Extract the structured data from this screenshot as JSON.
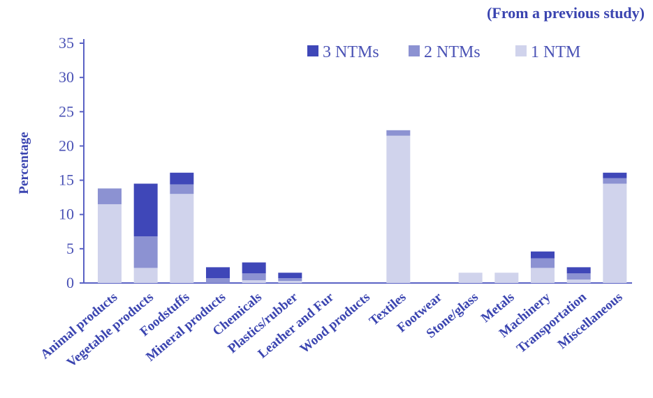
{
  "note": "(From a previous study)",
  "colors": {
    "axis": "#5a62c4",
    "text": "#3a44b0",
    "s3": "#3f47b8",
    "s2": "#8c92d2",
    "s1": "#d0d3ec"
  },
  "chart_data": {
    "type": "bar",
    "stacked": true,
    "title": "",
    "xlabel": "",
    "ylabel": "Percentage",
    "ylim": [
      0,
      35
    ],
    "yticks": [
      "0",
      "5",
      "10",
      "15",
      "20",
      "25",
      "30",
      "35"
    ],
    "legend_position": "top-right",
    "grid": false,
    "categories": [
      "Animal products",
      "Vegetable products",
      "Foodstuffs",
      "Mineral products",
      "Chemicals",
      "Plastics/rubber",
      "Leather and Fur",
      "Wood products",
      "Textiles",
      "Footwear",
      "Stone/glass",
      "Metals",
      "Machinery",
      "Transportation",
      "Miscellaneous"
    ],
    "series": [
      {
        "name": "1 NTM",
        "values": [
          11.5,
          2.2,
          13,
          0,
          0.4,
          0.3,
          0,
          0,
          21.5,
          0,
          1.5,
          1.5,
          2.2,
          0.5,
          14.5
        ]
      },
      {
        "name": "2 NTMs",
        "values": [
          2.3,
          4.6,
          1.4,
          0.7,
          1,
          0.4,
          0,
          0,
          0.8,
          0,
          0,
          0,
          1.4,
          0.9,
          0.8
        ]
      },
      {
        "name": "3 NTMs",
        "values": [
          0,
          7.7,
          1.7,
          1.6,
          1.6,
          0.8,
          0,
          0,
          0,
          0,
          0,
          0,
          1,
          0.9,
          0.8
        ]
      }
    ],
    "legend_order": [
      "3 NTMs",
      "2 NTMs",
      "1 NTM"
    ]
  }
}
